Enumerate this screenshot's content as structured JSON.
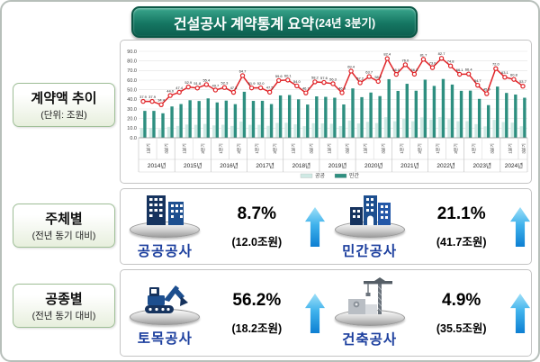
{
  "title": {
    "main": "건설공사 계약통계 요약",
    "period": "(24년 3분기)"
  },
  "rows": [
    {
      "label": "계약액 추이",
      "sub": "(단위: 조원)"
    },
    {
      "label": "주체별",
      "sub": "(전년 동기 대비)"
    },
    {
      "label": "공종별",
      "sub": "(전년 동기 대비)"
    }
  ],
  "colors": {
    "title_bg": "#157662",
    "bar_public": "#cfe9e4",
    "bar_private": "#2e8f80",
    "line_total": "#e02428",
    "label_blue": "#1c3f9e",
    "arrow_blue_light": "#8ed6f6",
    "arrow_blue_dark": "#0d7fd2"
  },
  "chart_data": {
    "type": "bar",
    "note": "grouped bars (공공/민간) with total line, unit 조원",
    "years": [
      "2014년",
      "2015년",
      "2016년",
      "2017년",
      "2018년",
      "2019년",
      "2020년",
      "2021년",
      "2022년",
      "2023년",
      "2024년"
    ],
    "quarters_per_year": [
      4,
      4,
      4,
      4,
      4,
      4,
      4,
      4,
      4,
      4,
      3
    ],
    "quarter_tick_labels": [
      "1분기",
      "3분기"
    ],
    "ylim": [
      0,
      90
    ],
    "ytick_step": 10,
    "legend_position": "bottom",
    "series": [
      {
        "name": "공공",
        "kind": "bar",
        "color": "#cfe9e4",
        "values": [
          9.9,
          9.9,
          8.9,
          11.4,
          12.3,
          13.8,
          13.5,
          14.4,
          12.9,
          13.6,
          12.3,
          16.8,
          13.5,
          13.5,
          12.4,
          15.5,
          15.6,
          14.0,
          12.1,
          15.1,
          15.0,
          14.6,
          12.2,
          18.0,
          14.9,
          16.6,
          15.3,
          21.4,
          17.2,
          19.8,
          17.2,
          21.2,
          19.0,
          21.5,
          19.4,
          17.2,
          17.3,
          14.2,
          11.9,
          18.7,
          16.4,
          15.8,
          12.0
        ]
      },
      {
        "name": "민간",
        "kind": "bar",
        "color": "#2e8f80",
        "values": [
          28.0,
          28.0,
          25.5,
          32.6,
          35.1,
          39.1,
          38.3,
          41.0,
          36.8,
          38.7,
          35.0,
          47.9,
          38.4,
          38.5,
          35.1,
          44.1,
          44.5,
          40.0,
          34.6,
          43.1,
          42.6,
          41.7,
          34.7,
          51.4,
          42.3,
          47.1,
          43.4,
          61.0,
          48.8,
          56.2,
          49.0,
          60.5,
          54.0,
          61.2,
          55.4,
          48.9,
          49.1,
          40.5,
          34.0,
          53.3,
          46.7,
          45.0,
          41.7
        ]
      },
      {
        "name": "합계",
        "kind": "line",
        "color": "#e02428",
        "labeled": true,
        "values": [
          37.9,
          37.9,
          34.4,
          44.0,
          47.4,
          52.9,
          51.8,
          55.4,
          49.7,
          52.3,
          47.3,
          64.7,
          51.9,
          52.0,
          47.5,
          59.6,
          60.1,
          54.0,
          46.7,
          58.2,
          57.6,
          56.3,
          46.9,
          69.4,
          57.2,
          63.7,
          58.7,
          82.4,
          66.0,
          76.0,
          66.2,
          81.7,
          73.0,
          82.7,
          74.8,
          66.1,
          66.4,
          54.7,
          45.9,
          72.0,
          63.1,
          60.8,
          53.7
        ]
      }
    ]
  },
  "stats": {
    "subject": [
      {
        "name": "공공공사",
        "pct": "8.7%",
        "amount": "(12.0조원)",
        "icon": "public-buildings"
      },
      {
        "name": "민간공사",
        "pct": "21.1%",
        "amount": "(41.7조원)",
        "icon": "private-buildings"
      }
    ],
    "type": [
      {
        "name": "토목공사",
        "pct": "56.2%",
        "amount": "(18.2조원)",
        "icon": "excavator"
      },
      {
        "name": "건축공사",
        "pct": "4.9%",
        "amount": "(35.5조원)",
        "icon": "crane"
      }
    ]
  }
}
